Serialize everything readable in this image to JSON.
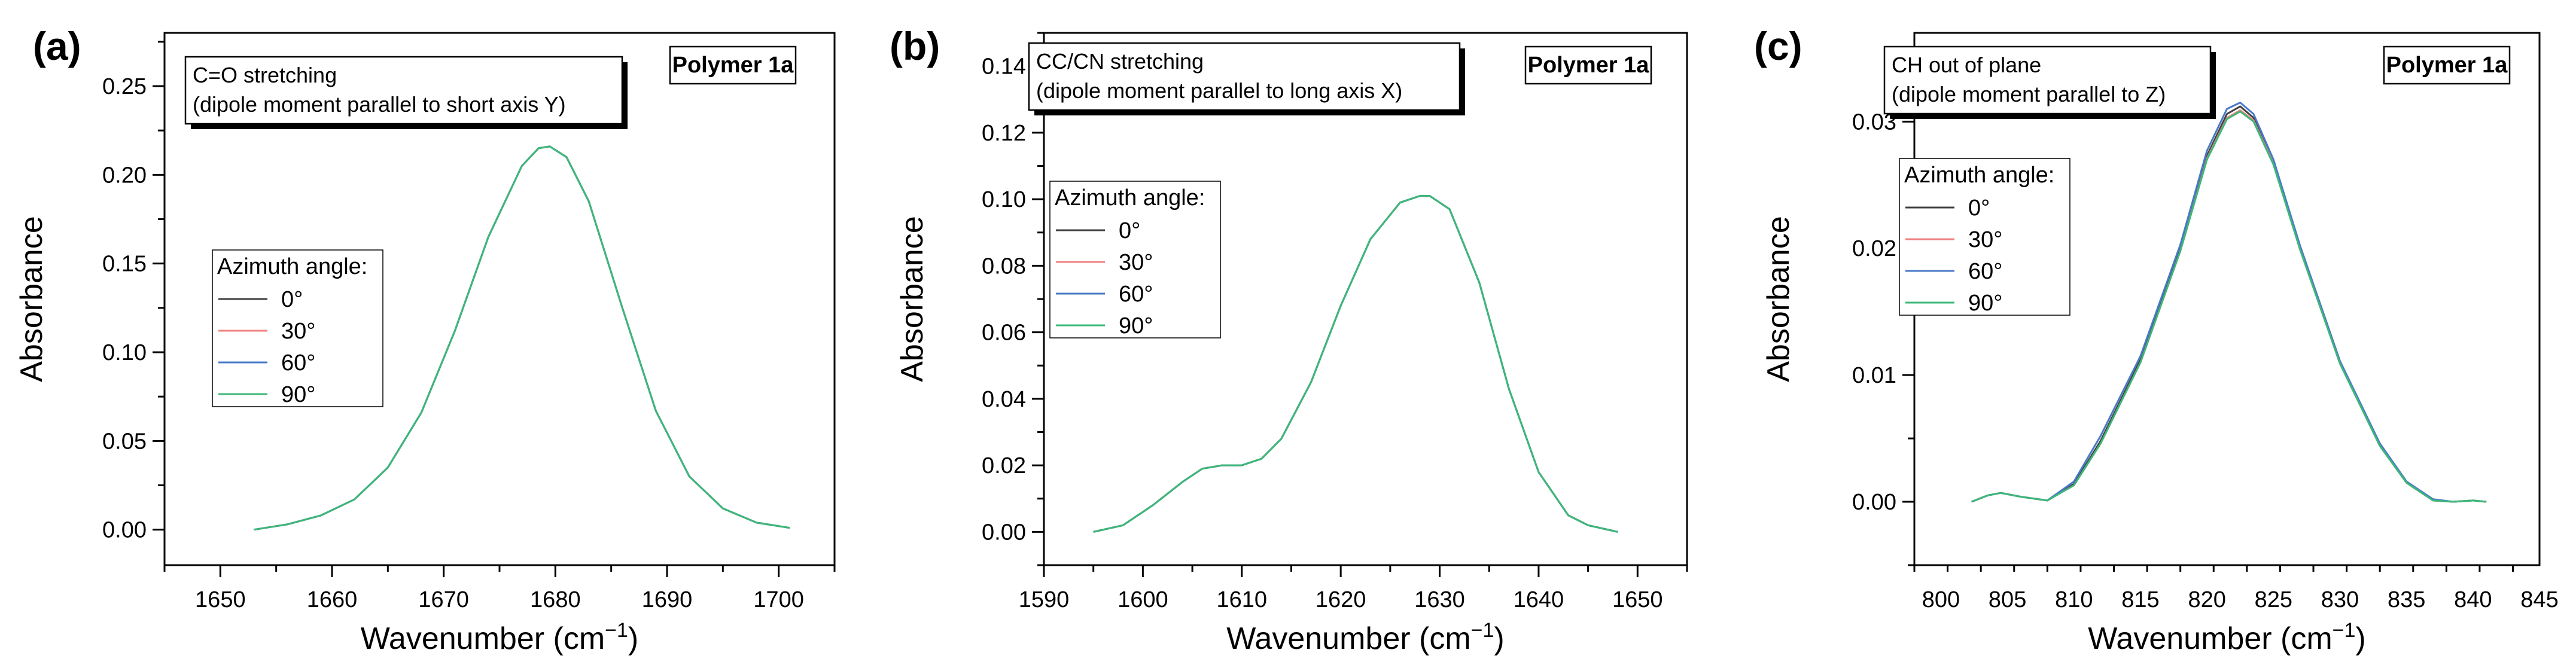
{
  "chart_data": [
    {
      "type": "line",
      "panel_label": "(a)",
      "annotation": [
        "C=O stretching",
        "(dipole moment parallel to short axis Y)"
      ],
      "tag": "Polymer 1a",
      "xlabel": "Wavenumber (cm",
      "xlabel_sup": "−1",
      "xlabel_end": ")",
      "ylabel": "Absorbance",
      "xlim": [
        1645,
        1705
      ],
      "ylim": [
        -0.02,
        0.28
      ],
      "xticks": [
        1650,
        1660,
        1670,
        1680,
        1690,
        1700
      ],
      "yticks": [
        0.0,
        0.05,
        0.1,
        0.15,
        0.2,
        0.25
      ],
      "ytick_labels": [
        "0.00",
        "0.05",
        "0.10",
        "0.15",
        "0.20",
        "0.25"
      ],
      "legend_title": "Azimuth angle:",
      "series": [
        {
          "name": "0°",
          "color": "#404040",
          "x": [
            1653,
            1656,
            1659,
            1662,
            1665,
            1668,
            1671,
            1674,
            1677,
            1678.5,
            1679.5,
            1681,
            1683,
            1686,
            1689,
            1692,
            1695,
            1698,
            1701
          ],
          "y": [
            0.0,
            0.003,
            0.008,
            0.017,
            0.035,
            0.066,
            0.112,
            0.165,
            0.205,
            0.215,
            0.216,
            0.21,
            0.185,
            0.125,
            0.067,
            0.03,
            0.012,
            0.004,
            0.001
          ]
        },
        {
          "name": "30°",
          "color": "#f08080",
          "x": [
            1653,
            1656,
            1659,
            1662,
            1665,
            1668,
            1671,
            1674,
            1677,
            1678.5,
            1679.5,
            1681,
            1683,
            1686,
            1689,
            1692,
            1695,
            1698,
            1701
          ],
          "y": [
            0.0,
            0.003,
            0.008,
            0.017,
            0.035,
            0.066,
            0.112,
            0.165,
            0.205,
            0.215,
            0.216,
            0.21,
            0.185,
            0.125,
            0.067,
            0.03,
            0.012,
            0.004,
            0.001
          ]
        },
        {
          "name": "60°",
          "color": "#4a78c8",
          "x": [
            1653,
            1656,
            1659,
            1662,
            1665,
            1668,
            1671,
            1674,
            1677,
            1678.5,
            1679.5,
            1681,
            1683,
            1686,
            1689,
            1692,
            1695,
            1698,
            1701
          ],
          "y": [
            0.0,
            0.003,
            0.008,
            0.017,
            0.035,
            0.066,
            0.112,
            0.165,
            0.205,
            0.215,
            0.216,
            0.21,
            0.185,
            0.125,
            0.067,
            0.03,
            0.012,
            0.004,
            0.001
          ]
        },
        {
          "name": "90°",
          "color": "#3cb878",
          "x": [
            1653,
            1656,
            1659,
            1662,
            1665,
            1668,
            1671,
            1674,
            1677,
            1678.5,
            1679.5,
            1681,
            1683,
            1686,
            1689,
            1692,
            1695,
            1698,
            1701
          ],
          "y": [
            0.0,
            0.003,
            0.008,
            0.017,
            0.035,
            0.066,
            0.112,
            0.165,
            0.205,
            0.215,
            0.216,
            0.21,
            0.185,
            0.125,
            0.067,
            0.03,
            0.012,
            0.004,
            0.001
          ]
        }
      ]
    },
    {
      "type": "line",
      "panel_label": "(b)",
      "annotation": [
        "CC/CN stretching",
        "(dipole moment parallel to long axis X)"
      ],
      "tag": "Polymer 1a",
      "xlabel": "Wavenumber (cm",
      "xlabel_sup": "−1",
      "xlabel_end": ")",
      "ylabel": "Absorbance",
      "xlim": [
        1590,
        1655
      ],
      "ylim": [
        -0.01,
        0.15
      ],
      "xticks": [
        1590,
        1600,
        1610,
        1620,
        1630,
        1640,
        1650
      ],
      "yticks": [
        0.0,
        0.02,
        0.04,
        0.06,
        0.08,
        0.1,
        0.12,
        0.14
      ],
      "ytick_labels": [
        "0.00",
        "0.02",
        "0.04",
        "0.06",
        "0.08",
        "0.10",
        "0.12",
        "0.14"
      ],
      "legend_title": "Azimuth angle:",
      "series": [
        {
          "name": "0°",
          "color": "#404040",
          "x": [
            1595,
            1598,
            1601,
            1604,
            1606,
            1608,
            1610,
            1612,
            1614,
            1617,
            1620,
            1623,
            1626,
            1628,
            1629,
            1631,
            1634,
            1637,
            1640,
            1643,
            1645,
            1648
          ],
          "y": [
            0.0,
            0.002,
            0.008,
            0.015,
            0.019,
            0.02,
            0.02,
            0.022,
            0.028,
            0.045,
            0.068,
            0.088,
            0.099,
            0.101,
            0.101,
            0.097,
            0.075,
            0.043,
            0.018,
            0.005,
            0.002,
            0.0
          ]
        },
        {
          "name": "30°",
          "color": "#f08080",
          "x": [
            1595,
            1598,
            1601,
            1604,
            1606,
            1608,
            1610,
            1612,
            1614,
            1617,
            1620,
            1623,
            1626,
            1628,
            1629,
            1631,
            1634,
            1637,
            1640,
            1643,
            1645,
            1648
          ],
          "y": [
            0.0,
            0.002,
            0.008,
            0.015,
            0.019,
            0.02,
            0.02,
            0.022,
            0.028,
            0.045,
            0.068,
            0.088,
            0.099,
            0.101,
            0.101,
            0.097,
            0.075,
            0.043,
            0.018,
            0.005,
            0.002,
            0.0
          ]
        },
        {
          "name": "60°",
          "color": "#4a78c8",
          "x": [
            1595,
            1598,
            1601,
            1604,
            1606,
            1608,
            1610,
            1612,
            1614,
            1617,
            1620,
            1623,
            1626,
            1628,
            1629,
            1631,
            1634,
            1637,
            1640,
            1643,
            1645,
            1648
          ],
          "y": [
            0.0,
            0.002,
            0.008,
            0.015,
            0.019,
            0.02,
            0.02,
            0.022,
            0.028,
            0.045,
            0.068,
            0.088,
            0.099,
            0.101,
            0.101,
            0.097,
            0.075,
            0.043,
            0.018,
            0.005,
            0.002,
            0.0
          ]
        },
        {
          "name": "90°",
          "color": "#3cb878",
          "x": [
            1595,
            1598,
            1601,
            1604,
            1606,
            1608,
            1610,
            1612,
            1614,
            1617,
            1620,
            1623,
            1626,
            1628,
            1629,
            1631,
            1634,
            1637,
            1640,
            1643,
            1645,
            1648
          ],
          "y": [
            0.0,
            0.002,
            0.008,
            0.015,
            0.019,
            0.02,
            0.02,
            0.022,
            0.028,
            0.045,
            0.068,
            0.088,
            0.099,
            0.101,
            0.101,
            0.097,
            0.075,
            0.043,
            0.018,
            0.005,
            0.002,
            0.0
          ]
        }
      ]
    },
    {
      "type": "line",
      "panel_label": "(c)",
      "annotation": [
        "CH out of plane",
        "(dipole moment parallel to Z)"
      ],
      "tag": "Polymer 1a",
      "xlabel": "Wavenumber (cm",
      "xlabel_sup": "−1",
      "xlabel_end": ")",
      "ylabel": "Absorbance",
      "xlim": [
        798,
        845
      ],
      "ylim": [
        -0.005,
        0.037
      ],
      "xticks": [
        800,
        805,
        810,
        815,
        820,
        825,
        830,
        835,
        840,
        845
      ],
      "yticks": [
        0.0,
        0.01,
        0.02,
        0.03
      ],
      "ytick_labels": [
        "0.00",
        "0.01",
        "0.02",
        "0.03"
      ],
      "legend_title": "Azimuth angle:",
      "series": [
        {
          "name": "0°",
          "color": "#404040",
          "x": [
            802.3,
            803.5,
            804.5,
            806,
            808,
            810,
            812,
            815,
            818,
            820,
            821.5,
            822.5,
            823.5,
            825,
            827,
            830,
            833,
            835,
            837,
            838.5,
            840,
            841
          ],
          "y": [
            0.0,
            0.0005,
            0.0007,
            0.0004,
            0.0001,
            0.0014,
            0.0048,
            0.0112,
            0.02,
            0.0273,
            0.0306,
            0.0312,
            0.0303,
            0.0268,
            0.02,
            0.011,
            0.0045,
            0.0015,
            0.0001,
            0.0,
            0.0001,
            0.0
          ]
        },
        {
          "name": "30°",
          "color": "#f08080",
          "x": [
            802.3,
            803.5,
            804.5,
            806,
            808,
            810,
            812,
            815,
            818,
            820,
            821.5,
            822.5,
            823.5,
            825,
            827,
            830,
            833,
            835,
            837,
            838.5,
            840,
            841
          ],
          "y": [
            0.0,
            0.0005,
            0.0007,
            0.0004,
            0.0001,
            0.0013,
            0.0046,
            0.011,
            0.0198,
            0.0271,
            0.0303,
            0.0309,
            0.0301,
            0.0267,
            0.0199,
            0.0109,
            0.0044,
            0.0015,
            0.0001,
            0.0,
            0.0001,
            0.0
          ]
        },
        {
          "name": "60°",
          "color": "#4a78c8",
          "x": [
            802.3,
            803.5,
            804.5,
            806,
            808,
            810,
            812,
            815,
            818,
            820,
            821.5,
            822.5,
            823.5,
            825,
            827,
            830,
            833,
            835,
            837,
            838.5,
            840,
            841
          ],
          "y": [
            0.0,
            0.0005,
            0.0007,
            0.0004,
            0.0001,
            0.0016,
            0.0052,
            0.0115,
            0.0203,
            0.0277,
            0.031,
            0.0315,
            0.0306,
            0.027,
            0.0202,
            0.0111,
            0.0046,
            0.0016,
            0.0002,
            0.0,
            0.0001,
            0.0
          ]
        },
        {
          "name": "90°",
          "color": "#3cb878",
          "x": [
            802.3,
            803.5,
            804.5,
            806,
            808,
            810,
            812,
            815,
            818,
            820,
            821.5,
            822.5,
            823.5,
            825,
            827,
            830,
            833,
            835,
            837,
            838.5,
            840,
            841
          ],
          "y": [
            0.0,
            0.0005,
            0.0007,
            0.0004,
            0.0001,
            0.0013,
            0.0046,
            0.011,
            0.0198,
            0.027,
            0.0302,
            0.0308,
            0.03,
            0.0266,
            0.0199,
            0.0109,
            0.0044,
            0.0015,
            0.0001,
            0.0,
            0.0001,
            0.0
          ]
        }
      ]
    }
  ]
}
